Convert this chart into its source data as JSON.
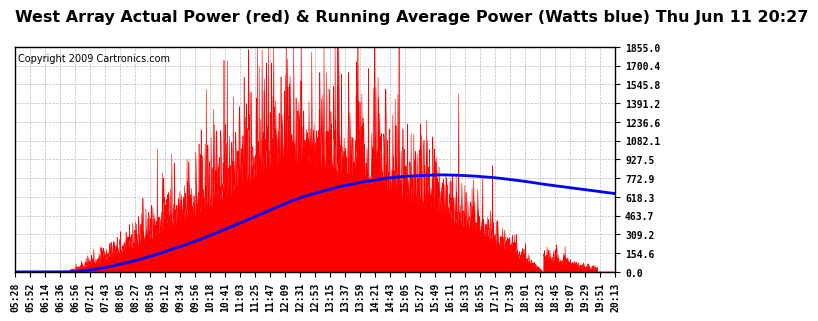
{
  "title": "West Array Actual Power (red) & Running Average Power (Watts blue) Thu Jun 11 20:27",
  "copyright": "Copyright 2009 Cartronics.com",
  "ylabel_values": [
    1855.0,
    1700.4,
    1545.8,
    1391.2,
    1236.6,
    1082.1,
    927.5,
    772.9,
    618.3,
    463.7,
    309.2,
    154.6,
    0.0
  ],
  "ymax": 1855.0,
  "ymin": 0.0,
  "x_tick_labels": [
    "05:28",
    "05:52",
    "06:14",
    "06:36",
    "06:56",
    "07:21",
    "07:43",
    "08:05",
    "08:27",
    "08:50",
    "09:12",
    "09:34",
    "09:56",
    "10:18",
    "10:41",
    "11:03",
    "11:25",
    "11:47",
    "12:09",
    "12:31",
    "12:53",
    "13:15",
    "13:37",
    "13:59",
    "14:21",
    "14:43",
    "15:05",
    "15:27",
    "15:49",
    "16:11",
    "16:33",
    "16:55",
    "17:17",
    "17:39",
    "18:01",
    "18:23",
    "18:45",
    "19:07",
    "19:29",
    "19:51",
    "20:13"
  ],
  "bg_color": "#ffffff",
  "plot_bg_color": "#ffffff",
  "red_color": "#ff0000",
  "blue_color": "#0000ff",
  "grid_color": "#bbbbbb",
  "title_fontsize": 11.5,
  "copyright_fontsize": 7,
  "tick_fontsize": 7
}
